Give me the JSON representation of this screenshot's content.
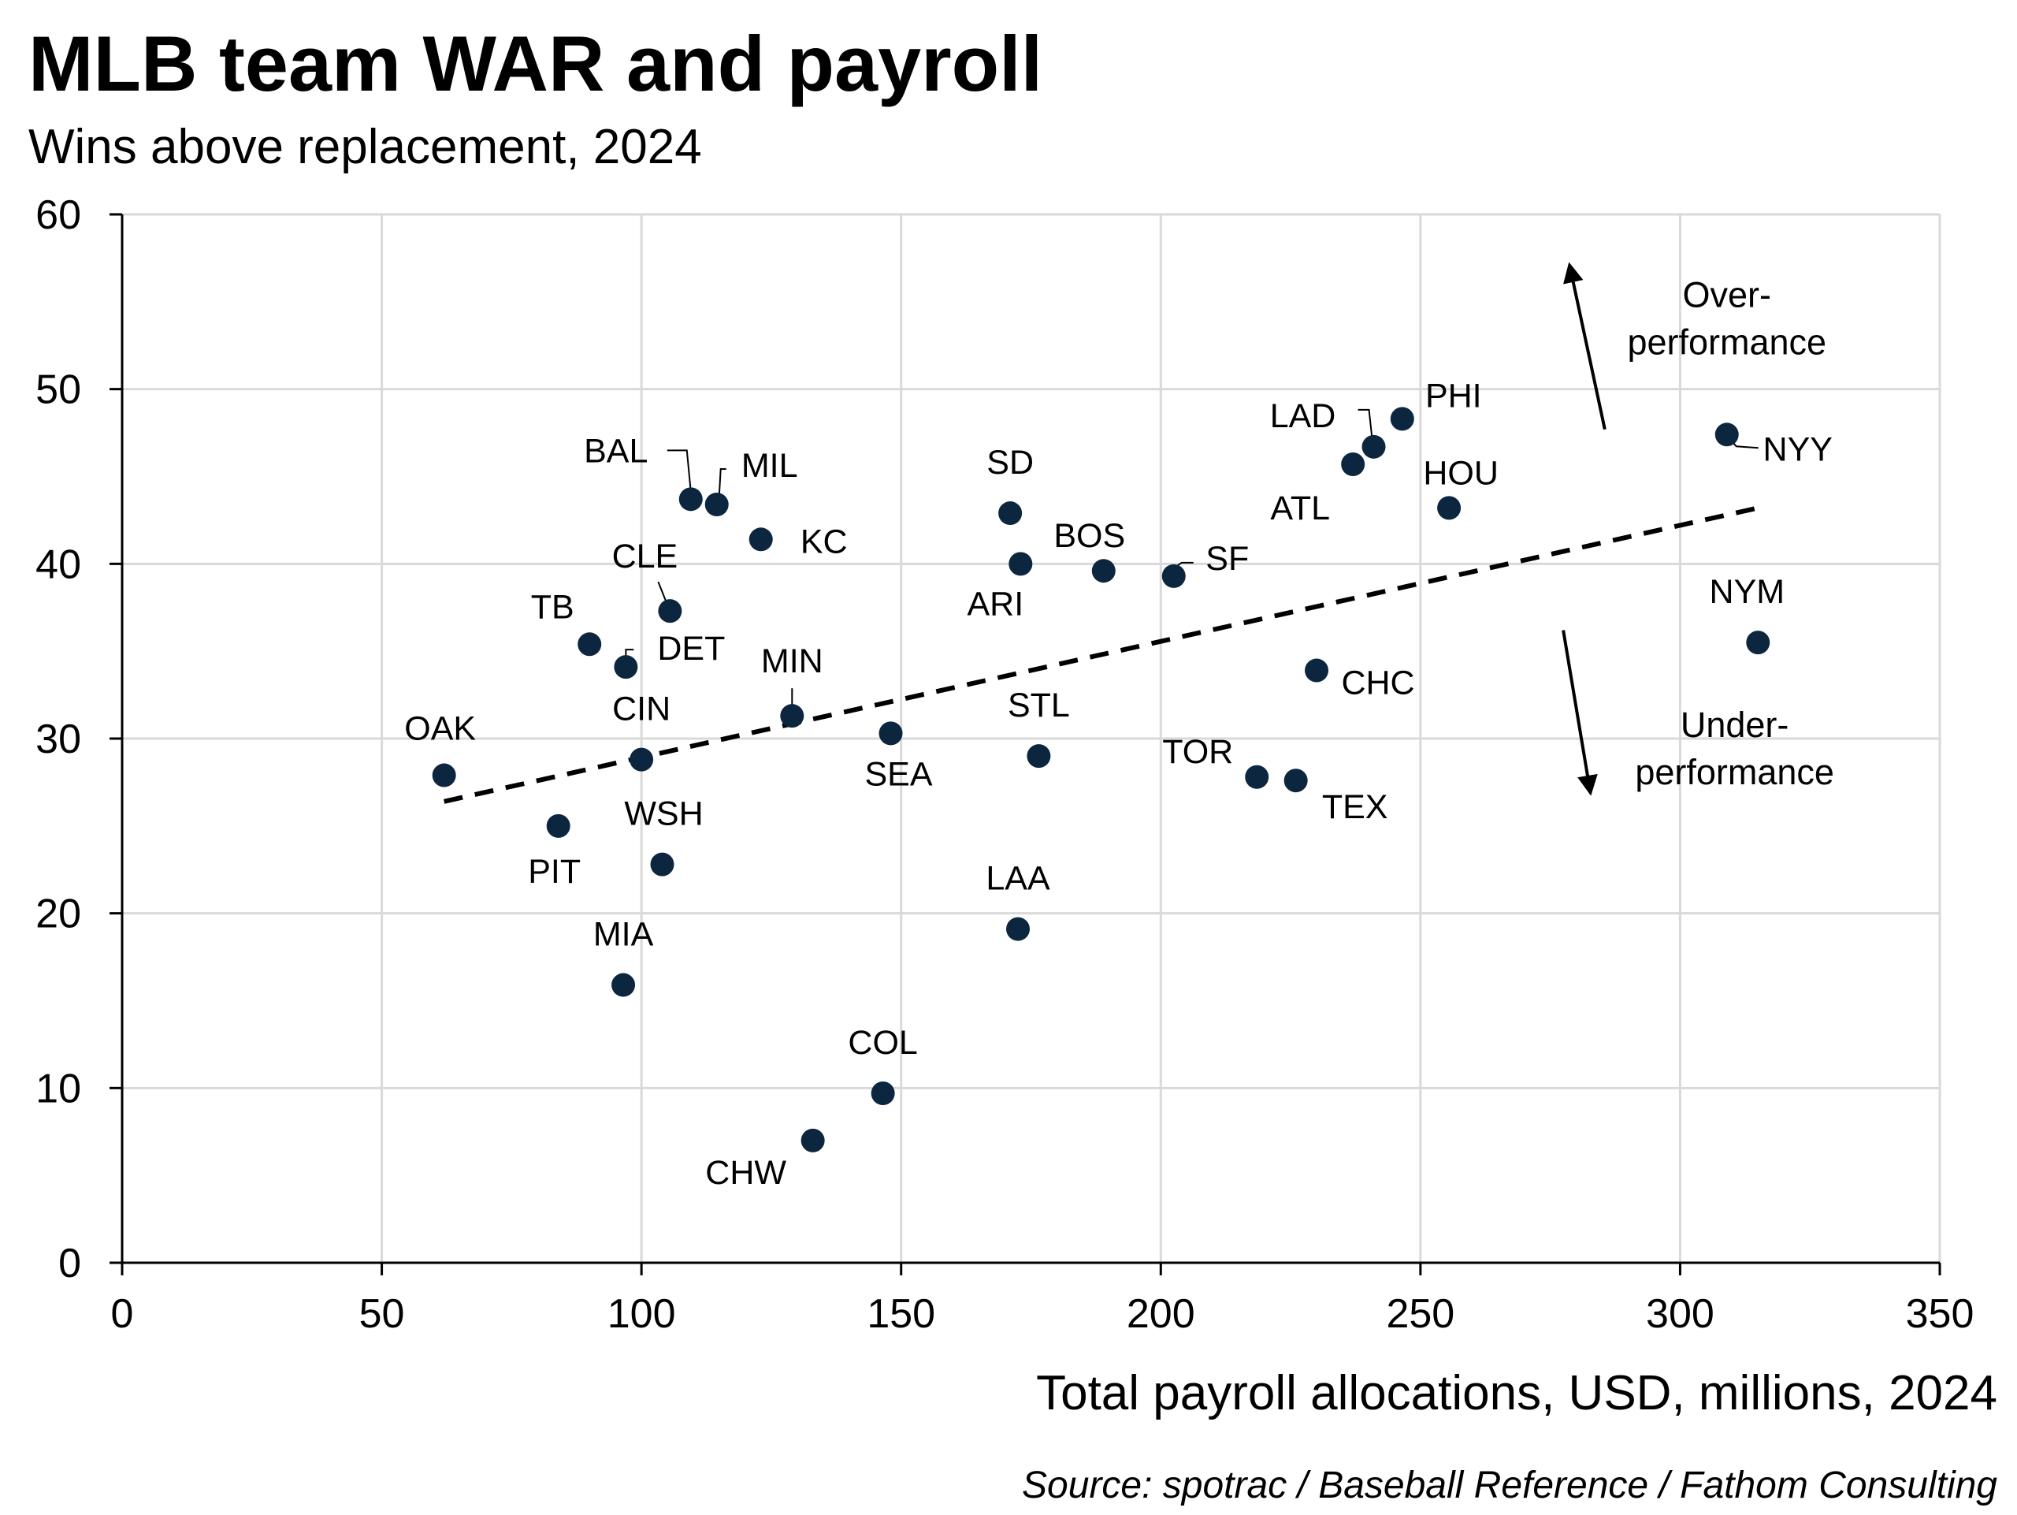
{
  "chart_data": {
    "type": "scatter",
    "title": "MLB team WAR and payroll",
    "subtitle": "Wins above replacement, 2024",
    "xlabel": "Total payroll allocations, USD, millions, 2024",
    "ylabel": "",
    "source": "Source: spotrac / Baseball Reference / Fathom Consulting",
    "xlim": [
      0,
      350
    ],
    "ylim": [
      0,
      60
    ],
    "xticks": [
      0,
      50,
      100,
      150,
      200,
      250,
      300,
      350
    ],
    "yticks": [
      0,
      10,
      20,
      30,
      40,
      50,
      60
    ],
    "grid": true,
    "points": [
      {
        "team": "OAK",
        "x": 62,
        "y": 27.9
      },
      {
        "team": "PIT",
        "x": 84,
        "y": 25.0
      },
      {
        "team": "TB",
        "x": 90,
        "y": 35.4
      },
      {
        "team": "MIA",
        "x": 96.5,
        "y": 15.9
      },
      {
        "team": "DET",
        "x": 97,
        "y": 34.1
      },
      {
        "team": "CIN",
        "x": 100,
        "y": 28.8
      },
      {
        "team": "WSH",
        "x": 104,
        "y": 22.8
      },
      {
        "team": "CLE",
        "x": 105.5,
        "y": 37.3
      },
      {
        "team": "BAL",
        "x": 109.5,
        "y": 43.7
      },
      {
        "team": "MIL",
        "x": 114.5,
        "y": 43.4
      },
      {
        "team": "KC",
        "x": 123,
        "y": 41.4
      },
      {
        "team": "MIN",
        "x": 129,
        "y": 31.3
      },
      {
        "team": "CHW",
        "x": 133,
        "y": 7.0
      },
      {
        "team": "COL",
        "x": 146.5,
        "y": 9.7
      },
      {
        "team": "SEA",
        "x": 148,
        "y": 30.3
      },
      {
        "team": "SD",
        "x": 171,
        "y": 42.9
      },
      {
        "team": "LAA",
        "x": 172.5,
        "y": 19.1
      },
      {
        "team": "ARI",
        "x": 173,
        "y": 40.0
      },
      {
        "team": "STL",
        "x": 176.5,
        "y": 29.0
      },
      {
        "team": "BOS",
        "x": 189,
        "y": 39.6
      },
      {
        "team": "SF",
        "x": 202.5,
        "y": 39.3
      },
      {
        "team": "TOR",
        "x": 218.5,
        "y": 27.8
      },
      {
        "team": "TEX",
        "x": 226,
        "y": 27.6
      },
      {
        "team": "CHC",
        "x": 230,
        "y": 33.9
      },
      {
        "team": "ATL",
        "x": 237,
        "y": 45.7
      },
      {
        "team": "LAD",
        "x": 241,
        "y": 46.7
      },
      {
        "team": "PHI",
        "x": 246.5,
        "y": 48.3
      },
      {
        "team": "HOU",
        "x": 255.5,
        "y": 43.2
      },
      {
        "team": "NYY",
        "x": 309,
        "y": 47.4
      },
      {
        "team": "NYM",
        "x": 315,
        "y": 35.5
      }
    ],
    "trendline": {
      "x": [
        62,
        315
      ],
      "y": [
        26.4,
        43.2
      ],
      "style": "dashed"
    },
    "annotations": [
      {
        "text_lines": [
          "Over-",
          "performance"
        ],
        "arrow": "up"
      },
      {
        "text_lines": [
          "Under-",
          "performance"
        ],
        "arrow": "down"
      }
    ],
    "colors": {
      "marker": "#0d2640",
      "grid": "#d9d9d9",
      "axis": "#000000",
      "text": "#000000"
    }
  }
}
